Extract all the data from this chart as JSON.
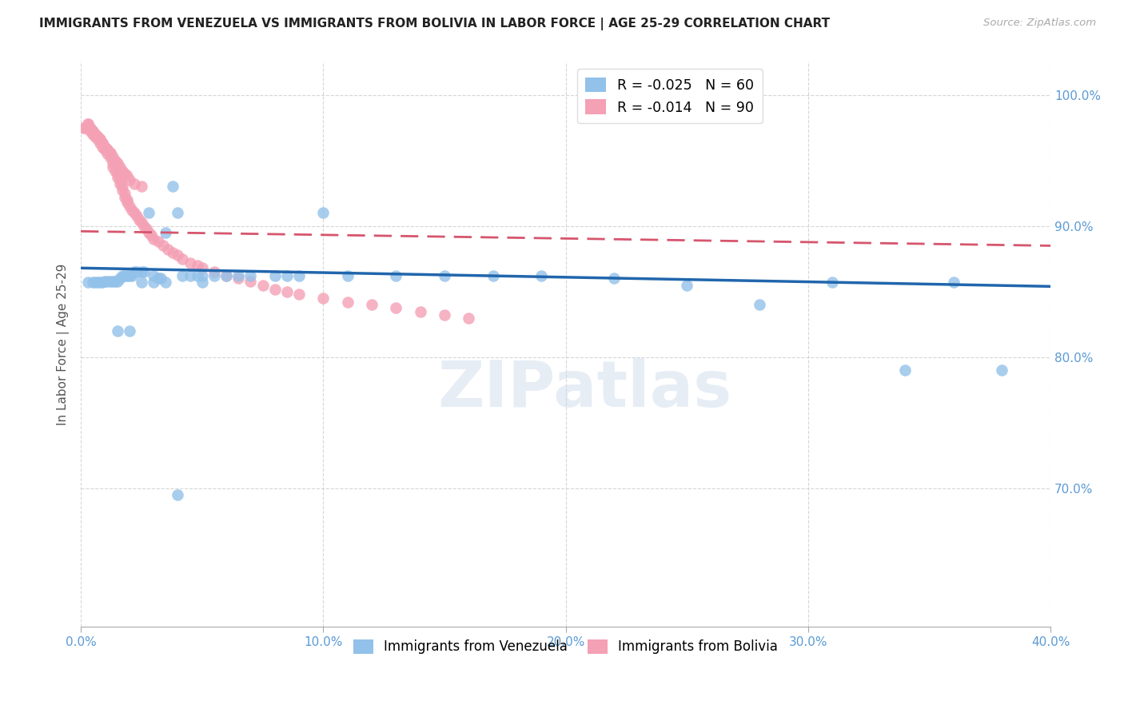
{
  "title": "IMMIGRANTS FROM VENEZUELA VS IMMIGRANTS FROM BOLIVIA IN LABOR FORCE | AGE 25-29 CORRELATION CHART",
  "source": "Source: ZipAtlas.com",
  "ylabel": "In Labor Force | Age 25-29",
  "legend_blue_r": "R = -0.025",
  "legend_blue_n": "N = 60",
  "legend_pink_r": "R = -0.014",
  "legend_pink_n": "N = 90",
  "watermark": "ZIPatlas",
  "blue_color": "#92C1E9",
  "pink_color": "#F4A0B5",
  "blue_line_color": "#2166ac",
  "pink_line_color": "#d6556d",
  "background_color": "#ffffff",
  "grid_color": "#cccccc",
  "axis_color": "#5b9bd5",
  "title_color": "#222222",
  "xlim": [
    0.0,
    0.4
  ],
  "ylim": [
    0.595,
    1.025
  ],
  "yticks": [
    1.0,
    0.9,
    0.8,
    0.7
  ],
  "xticks": [
    0.0,
    0.1,
    0.2,
    0.3,
    0.4
  ],
  "blue_line_x": [
    0.0,
    0.4
  ],
  "blue_line_y": [
    0.868,
    0.854
  ],
  "pink_line_x": [
    0.0,
    0.4
  ],
  "pink_line_y": [
    0.896,
    0.885
  ],
  "ven_x": [
    0.003,
    0.005,
    0.006,
    0.007,
    0.008,
    0.009,
    0.01,
    0.011,
    0.012,
    0.013,
    0.014,
    0.015,
    0.016,
    0.017,
    0.018,
    0.019,
    0.02,
    0.021,
    0.022,
    0.023,
    0.025,
    0.026,
    0.028,
    0.03,
    0.032,
    0.033,
    0.035,
    0.038,
    0.04,
    0.042,
    0.045,
    0.048,
    0.05,
    0.055,
    0.06,
    0.065,
    0.07,
    0.08,
    0.085,
    0.09,
    0.1,
    0.11,
    0.13,
    0.15,
    0.17,
    0.19,
    0.22,
    0.25,
    0.28,
    0.31,
    0.34,
    0.36,
    0.38,
    0.015,
    0.02,
    0.025,
    0.03,
    0.035,
    0.04,
    0.05
  ],
  "ven_y": [
    0.857,
    0.857,
    0.857,
    0.857,
    0.857,
    0.857,
    0.858,
    0.858,
    0.858,
    0.858,
    0.858,
    0.858,
    0.86,
    0.862,
    0.862,
    0.862,
    0.862,
    0.862,
    0.865,
    0.865,
    0.865,
    0.865,
    0.91,
    0.862,
    0.86,
    0.86,
    0.895,
    0.93,
    0.91,
    0.862,
    0.862,
    0.862,
    0.862,
    0.862,
    0.862,
    0.862,
    0.862,
    0.862,
    0.862,
    0.862,
    0.91,
    0.862,
    0.862,
    0.862,
    0.862,
    0.862,
    0.86,
    0.855,
    0.84,
    0.857,
    0.79,
    0.857,
    0.79,
    0.82,
    0.82,
    0.857,
    0.857,
    0.857,
    0.695,
    0.857
  ],
  "bol_x": [
    0.001,
    0.002,
    0.003,
    0.003,
    0.004,
    0.004,
    0.005,
    0.005,
    0.006,
    0.006,
    0.007,
    0.007,
    0.008,
    0.008,
    0.009,
    0.009,
    0.01,
    0.01,
    0.011,
    0.011,
    0.012,
    0.012,
    0.013,
    0.013,
    0.014,
    0.015,
    0.015,
    0.016,
    0.016,
    0.017,
    0.017,
    0.018,
    0.018,
    0.019,
    0.019,
    0.02,
    0.021,
    0.022,
    0.023,
    0.024,
    0.025,
    0.026,
    0.027,
    0.028,
    0.029,
    0.03,
    0.032,
    0.034,
    0.036,
    0.038,
    0.04,
    0.042,
    0.045,
    0.048,
    0.05,
    0.055,
    0.06,
    0.065,
    0.07,
    0.075,
    0.08,
    0.085,
    0.09,
    0.1,
    0.11,
    0.12,
    0.13,
    0.14,
    0.15,
    0.16,
    0.003,
    0.004,
    0.005,
    0.006,
    0.007,
    0.008,
    0.009,
    0.01,
    0.011,
    0.012,
    0.013,
    0.014,
    0.015,
    0.016,
    0.017,
    0.018,
    0.019,
    0.02,
    0.022,
    0.025
  ],
  "bol_y": [
    0.975,
    0.975,
    0.978,
    0.975,
    0.974,
    0.972,
    0.972,
    0.97,
    0.97,
    0.968,
    0.968,
    0.966,
    0.966,
    0.963,
    0.963,
    0.96,
    0.96,
    0.958,
    0.958,
    0.955,
    0.955,
    0.952,
    0.948,
    0.945,
    0.942,
    0.94,
    0.937,
    0.935,
    0.932,
    0.93,
    0.927,
    0.925,
    0.922,
    0.92,
    0.918,
    0.915,
    0.912,
    0.91,
    0.908,
    0.905,
    0.903,
    0.9,
    0.898,
    0.895,
    0.893,
    0.89,
    0.888,
    0.885,
    0.882,
    0.88,
    0.878,
    0.875,
    0.872,
    0.87,
    0.868,
    0.865,
    0.862,
    0.86,
    0.858,
    0.855,
    0.852,
    0.85,
    0.848,
    0.845,
    0.842,
    0.84,
    0.838,
    0.835,
    0.832,
    0.83,
    0.978,
    0.975,
    0.972,
    0.97,
    0.968,
    0.966,
    0.963,
    0.96,
    0.958,
    0.956,
    0.953,
    0.95,
    0.948,
    0.945,
    0.942,
    0.94,
    0.938,
    0.935,
    0.932,
    0.93
  ]
}
